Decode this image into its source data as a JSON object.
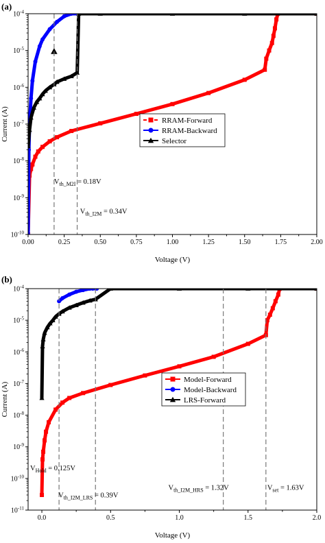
{
  "chart_data": [
    {
      "type": "scatter",
      "panel_label": "(a)",
      "xlabel": "Voltage (V)",
      "ylabel": "Current (A)",
      "xlim": [
        0,
        2.0
      ],
      "ylim": [
        1e-10,
        0.0001
      ],
      "yscale": "log",
      "x_ticks": [
        "0.00",
        "0.25",
        "0.50",
        "0.75",
        "1.00",
        "1.25",
        "1.50",
        "1.75",
        "2.00"
      ],
      "y_ticks": [
        {
          "base": "10",
          "exp": "-4"
        },
        {
          "base": "10",
          "exp": "-5"
        },
        {
          "base": "10",
          "exp": "-6"
        },
        {
          "base": "10",
          "exp": "-7"
        },
        {
          "base": "10",
          "exp": "-8"
        },
        {
          "base": "10",
          "exp": "-9"
        },
        {
          "base": "10",
          "exp": "-10"
        }
      ],
      "grid": false,
      "legend_position": "center-right",
      "series": [
        {
          "name": "RRAM-Forward",
          "color": "#ff0000",
          "marker": "square",
          "style": "dashed",
          "x": [
            0.0,
            0.01,
            0.02,
            0.03,
            0.05,
            0.07,
            0.1,
            0.15,
            0.2,
            0.3,
            0.5,
            0.75,
            1.0,
            1.25,
            1.5,
            1.64,
            1.65,
            1.67,
            1.69,
            1.7,
            1.71,
            1.72,
            1.73,
            2.0
          ],
          "y": [
            1e-10,
            4e-09,
            6e-09,
            8e-09,
            1.3e-08,
            1.8e-08,
            2.4e-08,
            3.4e-08,
            4.4e-08,
            6.5e-08,
            1.05e-07,
            1.9e-07,
            3.5e-07,
            7e-07,
            1.6e-06,
            3e-06,
            6e-06,
            1e-05,
            1.6e-05,
            2.5e-05,
            4e-05,
            7e-05,
            0.0001,
            0.0001
          ]
        },
        {
          "name": "RRAM-Backward",
          "color": "#0000ff",
          "marker": "circle",
          "style": "solid",
          "x": [
            0.0,
            0.005,
            0.01,
            0.02,
            0.03,
            0.05,
            0.08,
            0.1,
            0.15,
            0.2,
            0.25,
            0.3,
            0.35
          ],
          "y": [
            1e-10,
            2e-08,
            1e-07,
            5e-07,
            1.5e-06,
            5e-06,
            1.3e-05,
            2e-05,
            3.8e-05,
            6e-05,
            8.5e-05,
            0.0001,
            0.0001
          ]
        },
        {
          "name": "Selector",
          "color": "#000000",
          "marker": "triangle",
          "style": "solid",
          "x": [
            0.0,
            0.01,
            0.02,
            0.04,
            0.06,
            0.08,
            0.1,
            0.12,
            0.15,
            0.18,
            0.2,
            0.25,
            0.3,
            0.34,
            0.35,
            0.5,
            1.0,
            1.5,
            2.0
          ],
          "y": [
            2.5e-08,
            7e-08,
            1.5e-07,
            2.8e-07,
            4e-07,
            5e-07,
            6.5e-07,
            8e-07,
            1e-06,
            1.2e-06,
            1.4e-06,
            1.7e-06,
            2e-06,
            2.5e-06,
            0.0001,
            0.0001,
            0.0001,
            0.0001,
            0.0001
          ],
          "outlier": {
            "x": 0.18,
            "y": 9.5e-06
          }
        }
      ],
      "vlines": [
        0.18,
        0.34
      ],
      "annotations": [
        {
          "main": "V",
          "sub": "th_M2I",
          "rest": "= 0.18V",
          "x": 0.18,
          "y": 2.4e-09
        },
        {
          "main": "V",
          "sub": "th_I2M",
          "rest": "= 0.34V",
          "x": 0.36,
          "y": 3.7e-10
        }
      ]
    },
    {
      "type": "scatter",
      "panel_label": "(b)",
      "xlabel": "Voltage (V)",
      "ylabel": "Current (A)",
      "xlim": [
        -0.1,
        2.0
      ],
      "ylim": [
        1e-11,
        0.0001
      ],
      "yscale": "log",
      "x_ticks": [
        "0.0",
        "0.5",
        "1.0",
        "1.5",
        "2.0"
      ],
      "y_ticks": [
        {
          "base": "10",
          "exp": "-4"
        },
        {
          "base": "10",
          "exp": "-5"
        },
        {
          "base": "10",
          "exp": "-6"
        },
        {
          "base": "10",
          "exp": "-7"
        },
        {
          "base": "10",
          "exp": "-8"
        },
        {
          "base": "10",
          "exp": "-9"
        },
        {
          "base": "10",
          "exp": "-10"
        },
        {
          "base": "10",
          "exp": "-11"
        }
      ],
      "grid": false,
      "legend_position": "center",
      "series": [
        {
          "name": "Model-Forward",
          "color": "#ff0000",
          "marker": "square",
          "style": "solid",
          "x": [
            0.0,
            0.005,
            0.01,
            0.02,
            0.03,
            0.05,
            0.1,
            0.15,
            0.2,
            0.3,
            0.5,
            0.75,
            1.0,
            1.25,
            1.5,
            1.63,
            1.64,
            1.66,
            1.68,
            1.7,
            1.72,
            1.73,
            2.0
          ],
          "y": [
            3e-11,
            4e-10,
            7e-10,
            1.6e-09,
            3e-09,
            6e-09,
            1.5e-08,
            2.5e-08,
            3.5e-08,
            5e-08,
            9e-08,
            1.8e-07,
            3.5e-07,
            7e-07,
            1.8e-06,
            3.4e-06,
            1e-05,
            1.5e-05,
            2.4e-05,
            4e-05,
            6.5e-05,
            0.0001,
            0.0001
          ]
        },
        {
          "name": "Model-Backward",
          "color": "#0000ff",
          "marker": "circle",
          "style": "solid",
          "x": [
            0.125,
            0.15,
            0.2,
            0.25,
            0.3,
            0.35,
            0.37,
            0.4
          ],
          "y": [
            4e-05,
            5e-05,
            6.5e-05,
            8e-05,
            9e-05,
            0.0001,
            0.0001,
            0.0001
          ]
        },
        {
          "name": "LRS-Forward",
          "color": "#000000",
          "marker": "triangle",
          "style": "solid",
          "x": [
            0.0,
            0.005,
            0.01,
            0.02,
            0.04,
            0.06,
            0.08,
            0.1,
            0.125,
            0.15,
            0.2,
            0.25,
            0.3,
            0.35,
            0.39,
            0.5,
            1.0,
            1.5,
            2.0
          ],
          "y": [
            3.5e-08,
            1.5e-06,
            2.5e-06,
            4e-06,
            6e-06,
            8e-06,
            1e-05,
            1.3e-05,
            1.6e-05,
            1.9e-05,
            2.5e-05,
            3e-05,
            3.6e-05,
            4.2e-05,
            4.6e-05,
            0.0001,
            0.0001,
            0.0001,
            0.0001
          ]
        }
      ],
      "vlines": [
        0.125,
        0.39,
        1.32,
        1.63
      ],
      "annotations": [
        {
          "main": "V",
          "sub": "Hold",
          "rest": "= 0.125V",
          "x": -0.085,
          "y": 1.8e-10
        },
        {
          "main": "V",
          "sub": "th_I2M_LRS",
          "rest": "= 0.39V",
          "x": 0.12,
          "y": 2.5e-11
        },
        {
          "main": "V",
          "sub": "th_I2M_HRS",
          "rest": "= 1.32V",
          "x": 0.92,
          "y": 4.4e-11
        },
        {
          "main": "V",
          "sub": "set",
          "rest": "= 1.63V",
          "x": 1.64,
          "y": 4.4e-11
        }
      ]
    }
  ]
}
